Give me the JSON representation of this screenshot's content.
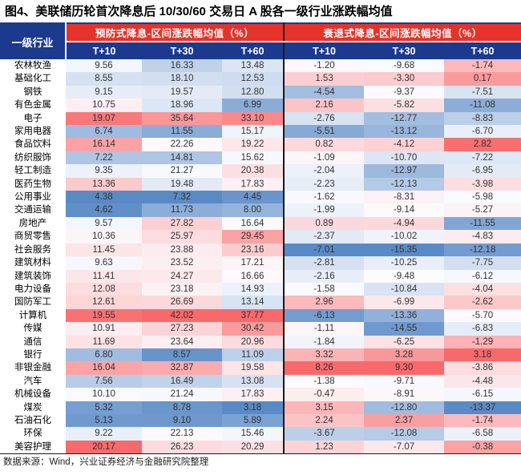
{
  "title": "图4、美联储历轮首次降息后 10/30/60 交易日 A 股各一级行业涨跌幅均值",
  "header": {
    "label_col": "一级行业",
    "groups": [
      {
        "label": "预防式降息-区间涨跌幅均值（%）"
      },
      {
        "label": "衰退式降息-区间涨跌幅均值（%）"
      }
    ],
    "subcols": [
      "T+10",
      "T+30",
      "T+60"
    ]
  },
  "footer": {
    "source": "数据来源：Wind，兴业证券经济与金融研究院整理"
  },
  "colors": {
    "header_navy": "#1B3A8E",
    "header_red": "#E6332A",
    "heat_low": "#5A8AC6",
    "heat_mid": "#FCFCFF",
    "heat_high": "#F8696B"
  },
  "chart_data": {
    "type": "table",
    "title": "图4、美联储历轮首次降息后 10/30/60 交易日 A 股各一级行业涨跌幅均值",
    "row_header": "一级行业",
    "column_groups": [
      "预防式降息-区间涨跌幅均值（%）",
      "衰退式降息-区间涨跌幅均值（%）"
    ],
    "columns": [
      "T+10",
      "T+30",
      "T+60",
      "T+10",
      "T+30",
      "T+60"
    ],
    "heatmap": {
      "low": "#5A8AC6",
      "mid": "#FCFCFF",
      "high": "#F8696B",
      "scale": "per-column, white at column median"
    },
    "rows": [
      {
        "name": "农林牧渔",
        "values": [
          9.56,
          16.33,
          13.48,
          -1.2,
          -9.68,
          -1.74
        ]
      },
      {
        "name": "基础化工",
        "values": [
          8.55,
          18.1,
          12.53,
          1.53,
          -3.3,
          0.17
        ]
      },
      {
        "name": "钢铁",
        "values": [
          9.15,
          19.57,
          12.8,
          -4.54,
          -9.37,
          -7.51
        ]
      },
      {
        "name": "有色金属",
        "values": [
          10.75,
          18.96,
          6.99,
          2.16,
          -5.82,
          -11.08
        ]
      },
      {
        "name": "电子",
        "values": [
          19.07,
          35.64,
          33.1,
          -2.76,
          -12.77,
          -8.83
        ]
      },
      {
        "name": "家用电器",
        "values": [
          6.74,
          11.55,
          15.17,
          -5.51,
          -13.12,
          -6.7
        ]
      },
      {
        "name": "食品饮料",
        "values": [
          16.14,
          22.26,
          19.22,
          0.82,
          -4.12,
          2.82
        ]
      },
      {
        "name": "纺织服饰",
        "values": [
          7.22,
          14.81,
          15.62,
          -1.09,
          -10.7,
          -7.22
        ]
      },
      {
        "name": "轻工制造",
        "values": [
          9.35,
          21.27,
          20.38,
          -2.04,
          -12.97,
          -6.95
        ]
      },
      {
        "name": "医药生物",
        "values": [
          13.36,
          19.48,
          17.83,
          -2.23,
          -12.13,
          -3.98
        ]
      },
      {
        "name": "公用事业",
        "values": [
          4.38,
          7.32,
          4.45,
          -1.62,
          -8.31,
          -5.98
        ]
      },
      {
        "name": "交通运输",
        "values": [
          4.62,
          11.73,
          8.0,
          -1.99,
          -9.14,
          -5.27
        ]
      },
      {
        "name": "房地产",
        "values": [
          9.57,
          27.82,
          16.64,
          0.89,
          -4.94,
          -11.55
        ]
      },
      {
        "name": "商贸零售",
        "values": [
          10.36,
          25.97,
          29.45,
          -2.37,
          -10.02,
          -4.83
        ]
      },
      {
        "name": "社会服务",
        "values": [
          11.45,
          23.88,
          23.16,
          -7.01,
          -15.35,
          -12.18
        ]
      },
      {
        "name": "建筑材料",
        "values": [
          9.63,
          23.52,
          17.21,
          -2.81,
          -10.25,
          -7.75
        ]
      },
      {
        "name": "建筑装饰",
        "values": [
          11.41,
          24.27,
          16.66,
          -2.16,
          -9.48,
          -6.12
        ]
      },
      {
        "name": "电力设备",
        "values": [
          12.08,
          23.18,
          14.93,
          -1.58,
          -10.84,
          -4.04
        ]
      },
      {
        "name": "国防军工",
        "values": [
          12.61,
          26.69,
          13.14,
          2.96,
          -6.99,
          -2.62
        ]
      },
      {
        "name": "计算机",
        "values": [
          19.55,
          42.02,
          37.77,
          -6.13,
          -13.36,
          -5.7
        ]
      },
      {
        "name": "传媒",
        "values": [
          10.91,
          27.23,
          30.42,
          -1.11,
          -14.55,
          -6.83
        ]
      },
      {
        "name": "通信",
        "values": [
          11.69,
          23.64,
          20.96,
          -1.84,
          -6.25,
          -1.29
        ]
      },
      {
        "name": "银行",
        "values": [
          6.8,
          8.57,
          11.09,
          3.32,
          3.28,
          3.18
        ]
      },
      {
        "name": "非银金融",
        "values": [
          16.04,
          32.87,
          19.58,
          8.26,
          9.3,
          -3.86
        ]
      },
      {
        "name": "汽车",
        "values": [
          7.56,
          16.49,
          13.08,
          -1.38,
          -9.71,
          -4.48
        ]
      },
      {
        "name": "机械设备",
        "values": [
          10.1,
          21.24,
          17.83,
          -0.47,
          -8.91,
          -6.15
        ]
      },
      {
        "name": "煤炭",
        "values": [
          5.32,
          8.78,
          3.18,
          3.15,
          -12.8,
          -13.37
        ]
      },
      {
        "name": "石油石化",
        "values": [
          5.13,
          9.1,
          5.89,
          2.24,
          2.37,
          -1.74
        ]
      },
      {
        "name": "环保",
        "values": [
          9.22,
          22.13,
          15.46,
          -3.67,
          -12.08,
          -6.58
        ]
      },
      {
        "name": "美容护理",
        "values": [
          20.17,
          26.23,
          20.29,
          1.23,
          -7.07,
          -0.38
        ]
      }
    ]
  }
}
